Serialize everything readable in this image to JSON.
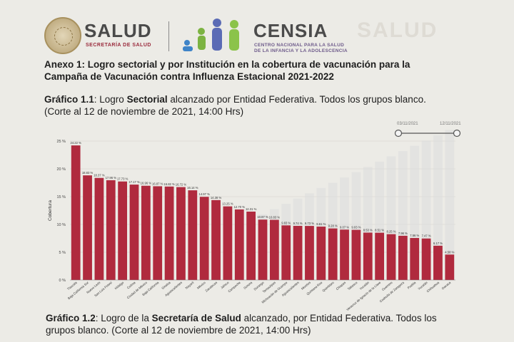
{
  "header": {
    "salud": "SALUD",
    "salud_sub": "SECRETARÍA DE SALUD",
    "censia": "CENSIA",
    "censia_sub1": "CENTRO NACIONAL PARA LA SALUD",
    "censia_sub2": "DE LA INFANCIA Y LA ADOLESCENCIA",
    "ghost_text": "SALUD"
  },
  "heading": {
    "line1": "Anexo 1: Logro sectorial y por Institución en la cobertura de vacunación para la",
    "line2": "Campaña de Vacunación contra Influenza Estacional 2021-2022"
  },
  "caption1": {
    "prefix": "Gráfico 1.1",
    "part1": ": Logro ",
    "bold": "Sectorial",
    "part2": " alcanzado por Entidad Federativa. Todos los grupos blanco.",
    "line2": "(Corte al 12 de noviembre de 2021, 14:00 Hrs)"
  },
  "caption2": {
    "prefix": "Gráfico 1.2",
    "part1": ": Logro de la ",
    "bold": "Secretaría de Salud",
    "part2": " alcanzado, por Entidad Federativa. Todos los",
    "line2": "grupos blanco. (Corte al 12 de noviembre de 2021, 14:00 Hrs)"
  },
  "slider": {
    "start_label": "03/11/2021",
    "end_label": "12/11/2021"
  },
  "colors": {
    "bar": "#b02a3e",
    "ghost_bar": "#dcdcdc",
    "grid": "#d2d0ca"
  },
  "chart_data": {
    "type": "bar",
    "title": "",
    "xlabel": "",
    "ylabel": "Cobertura",
    "ylim": [
      0,
      25
    ],
    "yticks": [
      0,
      5,
      10,
      15,
      20,
      25
    ],
    "ytick_labels": [
      "0 %",
      "5 %",
      "10 %",
      "15 %",
      "20 %",
      "25 %"
    ],
    "categories": [
      "Tlaxcala",
      "Baja California Sur",
      "Nuevo León",
      "San Luis Potosí",
      "Hidalgo",
      "Colima",
      "Ciudad de México",
      "Baja California",
      "Sinaloa",
      "Aguascalientes",
      "Nayarit",
      "México",
      "Zacatecas",
      "Jalisco",
      "Campeche",
      "Sonora",
      "Durango",
      "Tamaulipas",
      "Michoacán de Ocampo",
      "Aguascalientes",
      "Morelos",
      "Quintana Roo",
      "Querétaro",
      "Chiapas",
      "Tabasco",
      "Yucatán",
      "Veracruz de Ignacio de la Llave",
      "Guerrero",
      "Coahuila de Zaragoza",
      "Puebla",
      "Yucatán",
      "Chihuahua",
      "Oaxaca"
    ],
    "values": [
      24.22,
      18.83,
      18.37,
      17.96,
      17.73,
      17.17,
      16.96,
      16.87,
      16.82,
      16.72,
      16.14,
      14.97,
      14.38,
      13.25,
      12.7,
      12.31,
      10.87,
      10.83,
      9.83,
      9.74,
      9.73,
      9.61,
      9.28,
      9.07,
      9.03,
      8.53,
      8.51,
      8.25,
      7.96,
      7.56,
      7.47,
      6.17,
      4.58
    ],
    "data_labels": [
      "24.22 %",
      "18.83 %",
      "18.37 %",
      "17.96 %",
      "17.73 %",
      "17.17 %",
      "16.96 %",
      "16.87 %",
      "16.82 %",
      "16.72 %",
      "16.14 %",
      "14.97 %",
      "14.38 %",
      "13.25 %",
      "12.70 %",
      "12.31 %",
      "10.87 %",
      "10.83 %",
      "9.83 %",
      "9.74 %",
      "9.73 %",
      "9.61 %",
      "9.28 %",
      "9.07 %",
      "9.03 %",
      "8.53 %",
      "8.51 %",
      "8.25 %",
      "7.96 %",
      "7.56 %",
      "7.47 %",
      "6.17 %",
      "4.58 %"
    ],
    "grid": true,
    "legend": "none"
  }
}
